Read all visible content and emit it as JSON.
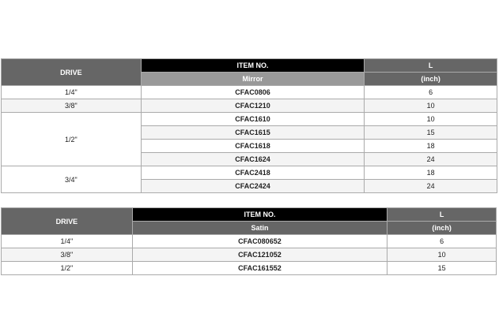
{
  "table1": {
    "headers": {
      "drive": "DRIVE",
      "item_no": "ITEM NO.",
      "finish": "Mirror",
      "l": "L",
      "l_unit": "(inch)"
    },
    "groups": [
      {
        "drive": "1/4\"",
        "rows": [
          {
            "item": "CFAC0806",
            "l": "6"
          }
        ]
      },
      {
        "drive": "3/8\"",
        "rows": [
          {
            "item": "CFAC1210",
            "l": "10"
          }
        ]
      },
      {
        "drive": "1/2\"",
        "rows": [
          {
            "item": "CFAC1610",
            "l": "10"
          },
          {
            "item": "CFAC1615",
            "l": "15"
          },
          {
            "item": "CFAC1618",
            "l": "18"
          },
          {
            "item": "CFAC1624",
            "l": "24"
          }
        ]
      },
      {
        "drive": "3/4\"",
        "rows": [
          {
            "item": "CFAC2418",
            "l": "18"
          },
          {
            "item": "CFAC2424",
            "l": "24"
          }
        ]
      }
    ]
  },
  "table2": {
    "headers": {
      "drive": "DRIVE",
      "item_no": "ITEM NO.",
      "finish": "Satin",
      "l": "L",
      "l_unit": "(inch)"
    },
    "groups": [
      {
        "drive": "1/4\"",
        "rows": [
          {
            "item": "CFAC080652",
            "l": "6"
          }
        ]
      },
      {
        "drive": "3/8\"",
        "rows": [
          {
            "item": "CFAC121052",
            "l": "10"
          }
        ]
      },
      {
        "drive": "1/2\"",
        "rows": [
          {
            "item": "CFAC161552",
            "l": "15"
          }
        ]
      }
    ]
  },
  "colors": {
    "header_gray": "#666666",
    "header_black": "#000000",
    "mirror_sub": "#999999",
    "alt_row": "#f4f4f4"
  }
}
